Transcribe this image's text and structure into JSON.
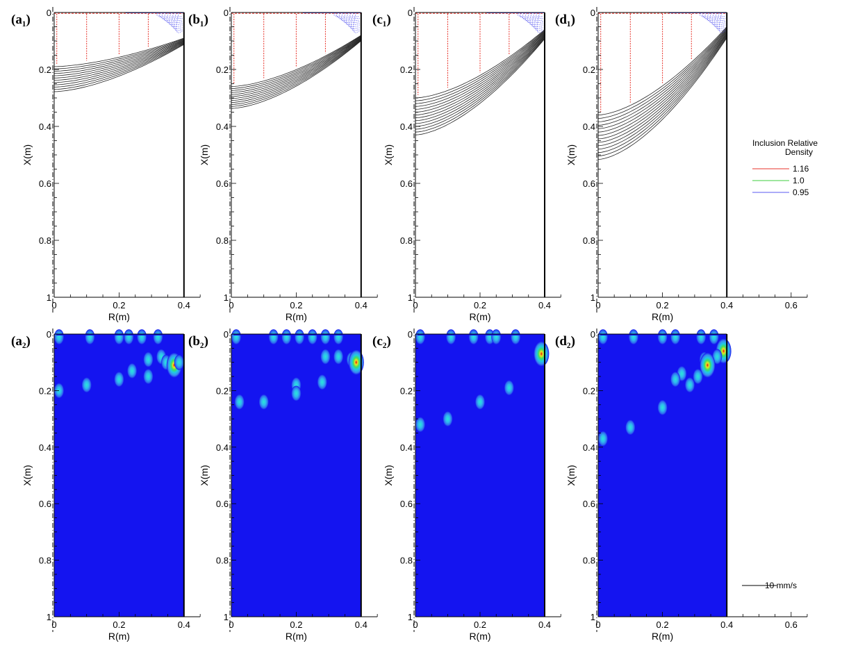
{
  "chart_data": [
    {
      "type": "contour",
      "id": "a1",
      "panel_label": "(a₁)",
      "xlabel": "R(m)",
      "ylabel": "X(m)",
      "r_ticks": [
        "0",
        "0.2",
        "0.4"
      ],
      "x_ticks": [
        "0",
        "0.2",
        "0.4",
        "0.6",
        "0.8",
        "1"
      ],
      "rlim": [
        0,
        0.45
      ],
      "xlim": [
        0,
        1
      ],
      "front_depth_axis_m": 0.19,
      "front_depth_wall_m": 0.09,
      "front_band_count": 12,
      "front_band_spacing_m": 0.008,
      "red_line_r_m": [
        0.1,
        0.2,
        0.29
      ]
    },
    {
      "type": "contour",
      "id": "b1",
      "panel_label": "(b₁)",
      "xlabel": "R(m)",
      "ylabel": "X(m)",
      "r_ticks": [
        "0",
        "0.2",
        "0.4"
      ],
      "x_ticks": [
        "0",
        "0.2",
        "0.4",
        "0.6",
        "0.8",
        "1"
      ],
      "rlim": [
        0,
        0.45
      ],
      "xlim": [
        0,
        1
      ],
      "front_depth_axis_m": 0.26,
      "front_depth_wall_m": 0.08,
      "front_band_count": 12,
      "front_band_spacing_m": 0.007,
      "red_line_r_m": [
        0.1,
        0.2,
        0.29
      ]
    },
    {
      "type": "contour",
      "id": "c1",
      "panel_label": "(c₁)",
      "xlabel": "R(m)",
      "ylabel": "X(m)",
      "r_ticks": [
        "0",
        "0.2",
        "0.4"
      ],
      "x_ticks": [
        "0",
        "0.2",
        "0.4",
        "0.6",
        "0.8",
        "1"
      ],
      "rlim": [
        0,
        0.45
      ],
      "xlim": [
        0,
        1
      ],
      "front_depth_axis_m": 0.3,
      "front_depth_wall_m": 0.06,
      "front_band_count": 14,
      "front_band_spacing_m": 0.01,
      "red_line_r_m": [
        0.1,
        0.2,
        0.29
      ]
    },
    {
      "type": "contour",
      "id": "d1",
      "panel_label": "(d₁)",
      "xlabel": "R(m)",
      "ylabel": "X(m)",
      "r_ticks": [
        "0",
        "0.2",
        "0.4",
        "0.6"
      ],
      "x_ticks": [
        "0",
        "0.2",
        "0.4",
        "0.6",
        "0.8",
        "1"
      ],
      "rlim": [
        0,
        0.65
      ],
      "xlim": [
        0,
        1
      ],
      "front_depth_axis_m": 0.36,
      "front_depth_wall_m": 0.05,
      "front_band_count": 14,
      "front_band_spacing_m": 0.012,
      "red_line_r_m": [
        0.1,
        0.2,
        0.29
      ]
    },
    {
      "type": "heatmap",
      "id": "a2",
      "panel_label": "(a₂)",
      "xlabel": "R(m)",
      "ylabel": "X(m)",
      "r_ticks": [
        "0",
        "0.2",
        "0.4"
      ],
      "x_ticks": [
        "0",
        "0.2",
        "0.4",
        "0.6",
        "0.8",
        "1"
      ],
      "rlim": [
        0,
        0.45
      ],
      "xlim": [
        0,
        1
      ],
      "spots": [
        {
          "r": 0.015,
          "x": 0.01,
          "s": 0.7
        },
        {
          "r": 0.11,
          "x": 0.01,
          "s": 0.5
        },
        {
          "r": 0.2,
          "x": 0.01,
          "s": 0.45
        },
        {
          "r": 0.23,
          "x": 0.01,
          "s": 0.45
        },
        {
          "r": 0.27,
          "x": 0.01,
          "s": 0.45
        },
        {
          "r": 0.32,
          "x": 0.01,
          "s": 0.45
        },
        {
          "r": 0.29,
          "x": 0.09,
          "s": 0.45
        },
        {
          "r": 0.33,
          "x": 0.08,
          "s": 0.5
        },
        {
          "r": 0.345,
          "x": 0.1,
          "s": 0.5
        },
        {
          "r": 0.37,
          "x": 0.11,
          "s": 1.0
        },
        {
          "r": 0.385,
          "x": 0.1,
          "s": 0.6
        },
        {
          "r": 0.24,
          "x": 0.13,
          "s": 0.45
        },
        {
          "r": 0.2,
          "x": 0.16,
          "s": 0.45
        },
        {
          "r": 0.29,
          "x": 0.15,
          "s": 0.45
        },
        {
          "r": 0.1,
          "x": 0.18,
          "s": 0.45
        },
        {
          "r": 0.015,
          "x": 0.2,
          "s": 0.45
        }
      ]
    },
    {
      "type": "heatmap",
      "id": "b2",
      "panel_label": "(b₂)",
      "xlabel": "R(m)",
      "ylabel": "X(m)",
      "r_ticks": [
        "0",
        "0.2",
        "0.4"
      ],
      "x_ticks": [
        "0",
        "0.2",
        "0.4",
        "0.6",
        "0.8",
        "1"
      ],
      "rlim": [
        0,
        0.45
      ],
      "xlim": [
        0,
        1
      ],
      "spots": [
        {
          "r": 0.015,
          "x": 0.01,
          "s": 0.6
        },
        {
          "r": 0.13,
          "x": 0.01,
          "s": 0.45
        },
        {
          "r": 0.17,
          "x": 0.01,
          "s": 0.45
        },
        {
          "r": 0.21,
          "x": 0.01,
          "s": 0.45
        },
        {
          "r": 0.25,
          "x": 0.01,
          "s": 0.45
        },
        {
          "r": 0.29,
          "x": 0.01,
          "s": 0.45
        },
        {
          "r": 0.33,
          "x": 0.01,
          "s": 0.45
        },
        {
          "r": 0.29,
          "x": 0.08,
          "s": 0.45
        },
        {
          "r": 0.33,
          "x": 0.08,
          "s": 0.45
        },
        {
          "r": 0.37,
          "x": 0.09,
          "s": 0.6
        },
        {
          "r": 0.385,
          "x": 0.1,
          "s": 1.0
        },
        {
          "r": 0.28,
          "x": 0.17,
          "s": 0.45
        },
        {
          "r": 0.2,
          "x": 0.18,
          "s": 0.45
        },
        {
          "r": 0.2,
          "x": 0.21,
          "s": 0.45
        },
        {
          "r": 0.025,
          "x": 0.24,
          "s": 0.45
        },
        {
          "r": 0.1,
          "x": 0.24,
          "s": 0.45
        }
      ]
    },
    {
      "type": "heatmap",
      "id": "c2",
      "panel_label": "(c₂)",
      "xlabel": "R(m)",
      "ylabel": "X(m)",
      "r_ticks": [
        "0",
        "0.2",
        "0.4"
      ],
      "x_ticks": [
        "0",
        "0.2",
        "0.4",
        "0.6",
        "0.8",
        "1"
      ],
      "rlim": [
        0,
        0.45
      ],
      "xlim": [
        0,
        1
      ],
      "spots": [
        {
          "r": 0.015,
          "x": 0.01,
          "s": 0.7
        },
        {
          "r": 0.11,
          "x": 0.01,
          "s": 0.45
        },
        {
          "r": 0.18,
          "x": 0.01,
          "s": 0.45
        },
        {
          "r": 0.23,
          "x": 0.01,
          "s": 0.45
        },
        {
          "r": 0.25,
          "x": 0.01,
          "s": 0.45
        },
        {
          "r": 0.31,
          "x": 0.01,
          "s": 0.45
        },
        {
          "r": 0.39,
          "x": 0.07,
          "s": 1.0
        },
        {
          "r": 0.29,
          "x": 0.19,
          "s": 0.45
        },
        {
          "r": 0.2,
          "x": 0.24,
          "s": 0.45
        },
        {
          "r": 0.1,
          "x": 0.3,
          "s": 0.45
        },
        {
          "r": 0.015,
          "x": 0.32,
          "s": 0.45
        }
      ]
    },
    {
      "type": "heatmap",
      "id": "d2",
      "panel_label": "(d₂)",
      "xlabel": "R(m)",
      "ylabel": "X(m)",
      "r_ticks": [
        "0",
        "0.2",
        "0.4",
        "0.6"
      ],
      "x_ticks": [
        "0",
        "0.2",
        "0.4",
        "0.6",
        "0.8",
        "1"
      ],
      "rlim": [
        0,
        0.65
      ],
      "xlim": [
        0,
        1
      ],
      "spots": [
        {
          "r": 0.015,
          "x": 0.01,
          "s": 0.7
        },
        {
          "r": 0.11,
          "x": 0.01,
          "s": 0.5
        },
        {
          "r": 0.2,
          "x": 0.01,
          "s": 0.45
        },
        {
          "r": 0.24,
          "x": 0.01,
          "s": 0.45
        },
        {
          "r": 0.32,
          "x": 0.01,
          "s": 0.45
        },
        {
          "r": 0.36,
          "x": 0.01,
          "s": 0.45
        },
        {
          "r": 0.39,
          "x": 0.06,
          "s": 0.9
        },
        {
          "r": 0.37,
          "x": 0.08,
          "s": 0.45
        },
        {
          "r": 0.33,
          "x": 0.09,
          "s": 0.45
        },
        {
          "r": 0.34,
          "x": 0.11,
          "s": 0.8
        },
        {
          "r": 0.31,
          "x": 0.15,
          "s": 0.45
        },
        {
          "r": 0.26,
          "x": 0.14,
          "s": 0.45
        },
        {
          "r": 0.24,
          "x": 0.16,
          "s": 0.45
        },
        {
          "r": 0.285,
          "x": 0.18,
          "s": 0.45
        },
        {
          "r": 0.2,
          "x": 0.26,
          "s": 0.45
        },
        {
          "r": 0.1,
          "x": 0.33,
          "s": 0.45
        },
        {
          "r": 0.015,
          "x": 0.37,
          "s": 0.45
        }
      ]
    }
  ],
  "legend": {
    "title_line1": "Inclusion Relative",
    "title_line2": "Density",
    "entries": [
      {
        "label": "1.16",
        "color": "#e8332a"
      },
      {
        "label": "1.0",
        "color": "#3dcc3d"
      },
      {
        "label": "0.95",
        "color": "#5a5af0"
      }
    ]
  },
  "vector_scale": {
    "label": "10 mm/s"
  },
  "colors": {
    "heat_background": "#1414f0",
    "front_line": "#222222",
    "red_lines": "#e8332a",
    "blue_lines": "#5a5af0"
  }
}
